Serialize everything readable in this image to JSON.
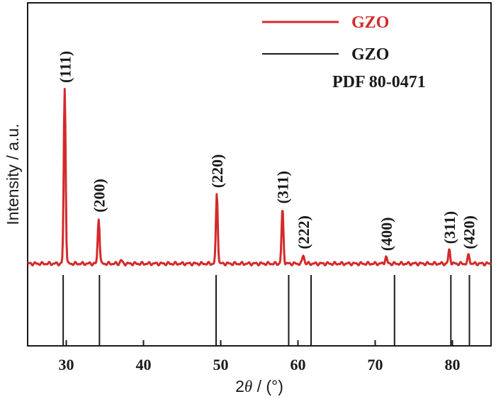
{
  "chart_data": {
    "type": "line",
    "xlabel_prefix": "2",
    "xlabel_theta": "θ",
    "xlabel_suffix": " / (°)",
    "ylabel": "Intensity / a.u.",
    "xlim": [
      25,
      85
    ],
    "x_ticks": [
      "30",
      "40",
      "50",
      "60",
      "70",
      "80"
    ],
    "y_ticks": [],
    "grid": false,
    "legend_position": "top-right",
    "series": [
      {
        "name": "GZO",
        "color": "#d42a2a",
        "kind": "measured pattern",
        "baseline": 0,
        "peaks": [
          {
            "x": 29.8,
            "y": 100,
            "label": "(111)"
          },
          {
            "x": 34.2,
            "y": 26,
            "label": "(200)"
          },
          {
            "x": 37.1,
            "y": 2
          },
          {
            "x": 49.5,
            "y": 40,
            "label": "(220)"
          },
          {
            "x": 58.0,
            "y": 31,
            "label": "(311)"
          },
          {
            "x": 60.7,
            "y": 5,
            "label": "(222)"
          },
          {
            "x": 71.4,
            "y": 4,
            "label": "(400)"
          },
          {
            "x": 79.6,
            "y": 8,
            "label": "(311)"
          },
          {
            "x": 82.1,
            "y": 5,
            "label": "(420)"
          }
        ]
      },
      {
        "name": "GZO",
        "subtitle": "PDF 80-0471",
        "color": "#1a1a1a",
        "kind": "reference lines",
        "x": [
          29.6,
          34.3,
          49.4,
          58.8,
          61.7,
          72.5,
          79.8,
          82.2
        ]
      }
    ]
  }
}
